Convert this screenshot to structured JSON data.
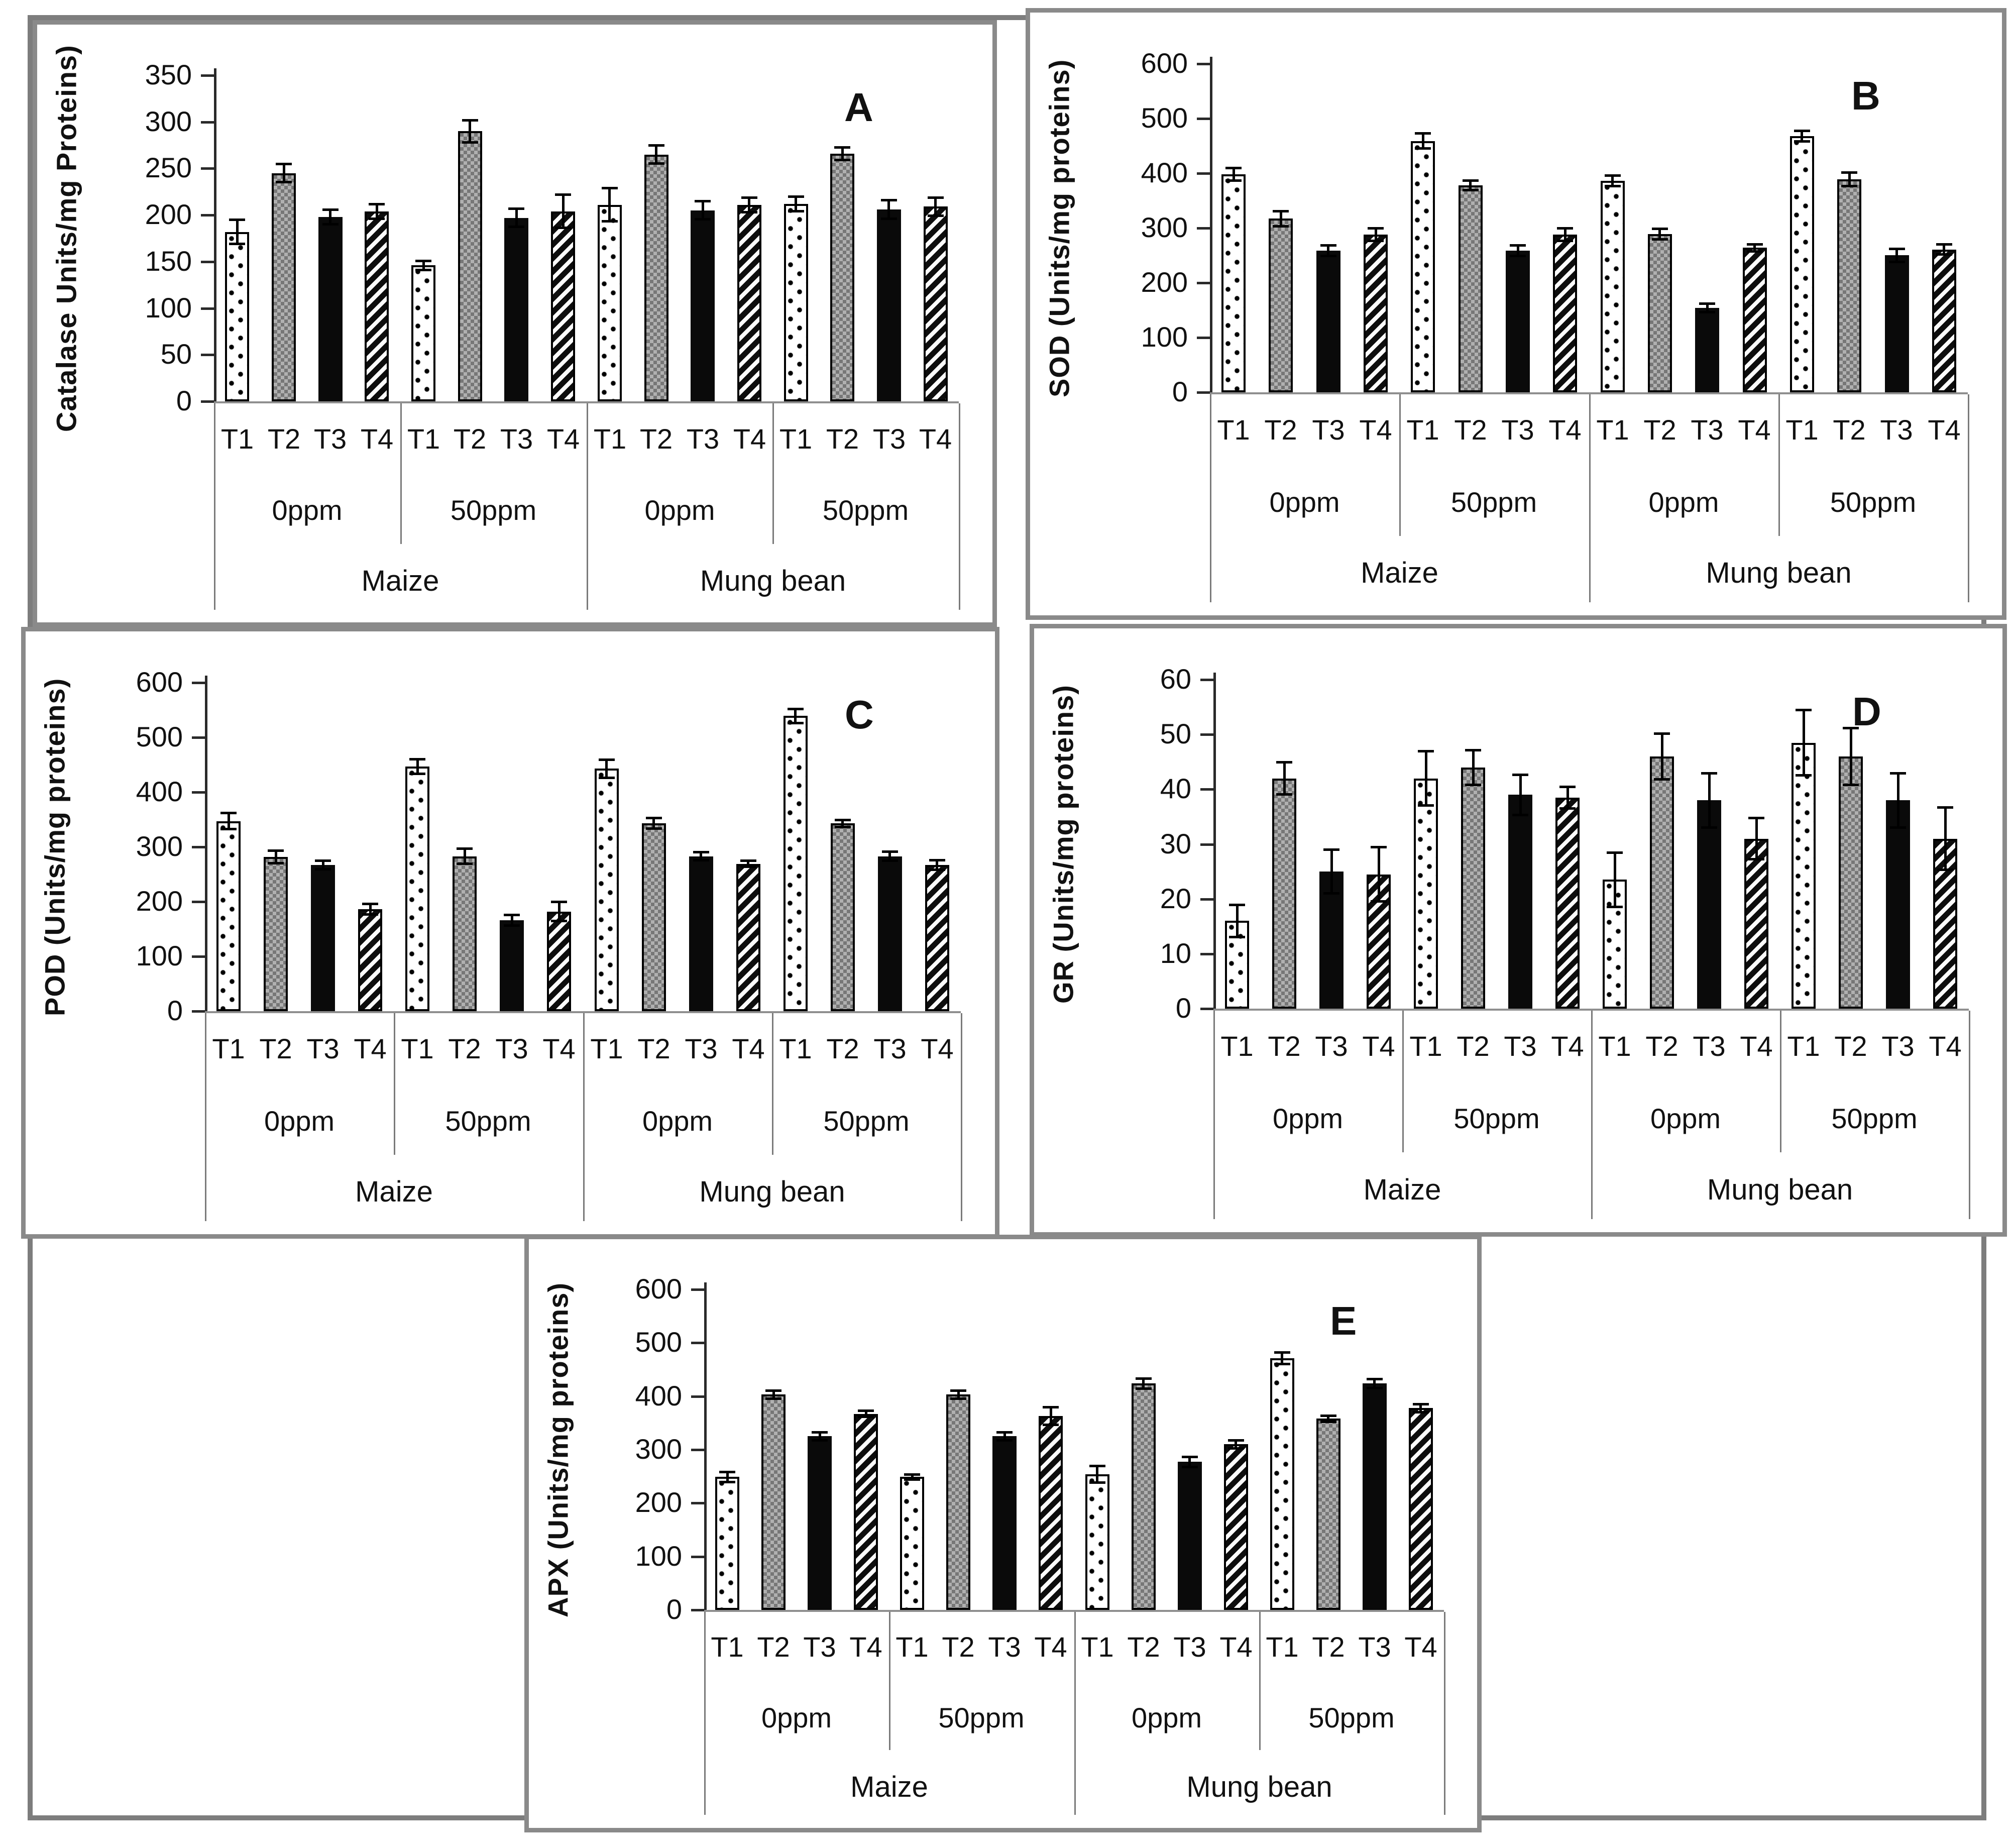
{
  "figure": {
    "treatments": [
      "T1",
      "T2",
      "T3",
      "T4"
    ],
    "ppm_labels": [
      "0ppm",
      "50ppm"
    ],
    "species_labels": [
      "Maize",
      "Mung bean"
    ],
    "bar_patterns": {
      "T1": "dotted-white",
      "T2": "checkered-gray",
      "T3": "solid-black",
      "T4": "diagonal-stripes"
    },
    "colors": {
      "panel_border": "#8a8a8a",
      "outer_frame": "#7d7d7d",
      "axis": "#2a2a2a",
      "baseline": "#8f8f8f",
      "bar_gray": "#949494",
      "black": "#0a0a0a"
    }
  },
  "chart_data": [
    {
      "type": "bar",
      "panel": "A",
      "panel_letter": "A",
      "ylabel": "Catalase Units/mg Proteins)",
      "ylim": [
        0,
        350
      ],
      "ytick_step": 50,
      "yticks": [
        0,
        50,
        100,
        150,
        200,
        250,
        300,
        350
      ],
      "categories_note": "species > ppm > treatment",
      "groups": [
        {
          "species": "Maize",
          "ppm": "0ppm",
          "treatments": [
            "T1",
            "T2",
            "T3",
            "T4"
          ],
          "values": [
            182,
            245,
            198,
            204
          ],
          "errors": [
            13,
            10,
            8,
            8
          ]
        },
        {
          "species": "Maize",
          "ppm": "50ppm",
          "treatments": [
            "T1",
            "T2",
            "T3",
            "T4"
          ],
          "values": [
            146,
            290,
            197,
            204
          ],
          "errors": [
            5,
            12,
            10,
            18
          ]
        },
        {
          "species": "Mung bean",
          "ppm": "0ppm",
          "treatments": [
            "T1",
            "T2",
            "T3",
            "T4"
          ],
          "values": [
            211,
            265,
            205,
            211
          ],
          "errors": [
            18,
            10,
            10,
            8
          ]
        },
        {
          "species": "Mung bean",
          "ppm": "50ppm",
          "treatments": [
            "T1",
            "T2",
            "T3",
            "T4"
          ],
          "values": [
            212,
            266,
            206,
            209
          ],
          "errors": [
            8,
            7,
            10,
            10
          ]
        }
      ]
    },
    {
      "type": "bar",
      "panel": "B",
      "panel_letter": "B",
      "ylabel": "SOD (Units/mg proteins)",
      "ylim": [
        0,
        600
      ],
      "ytick_step": 100,
      "yticks": [
        0,
        100,
        200,
        300,
        400,
        500,
        600
      ],
      "groups": [
        {
          "species": "Maize",
          "ppm": "0ppm",
          "treatments": [
            "T1",
            "T2",
            "T3",
            "T4"
          ],
          "values": [
            398,
            317,
            259,
            288
          ],
          "errors": [
            12,
            14,
            10,
            12
          ]
        },
        {
          "species": "Maize",
          "ppm": "50ppm",
          "treatments": [
            "T1",
            "T2",
            "T3",
            "T4"
          ],
          "values": [
            459,
            378,
            259,
            288
          ],
          "errors": [
            14,
            9,
            10,
            12
          ]
        },
        {
          "species": "Mung bean",
          "ppm": "0ppm",
          "treatments": [
            "T1",
            "T2",
            "T3",
            "T4"
          ],
          "values": [
            386,
            289,
            154,
            264
          ],
          "errors": [
            10,
            10,
            8,
            7
          ]
        },
        {
          "species": "Mung bean",
          "ppm": "50ppm",
          "treatments": [
            "T1",
            "T2",
            "T3",
            "T4"
          ],
          "values": [
            468,
            389,
            250,
            261
          ],
          "errors": [
            10,
            13,
            12,
            10
          ]
        }
      ]
    },
    {
      "type": "bar",
      "panel": "C",
      "panel_letter": "C",
      "ylabel": "POD (Units/mg proteins)",
      "ylim": [
        0,
        600
      ],
      "ytick_step": 100,
      "yticks": [
        0,
        100,
        200,
        300,
        400,
        500,
        600
      ],
      "groups": [
        {
          "species": "Maize",
          "ppm": "0ppm",
          "treatments": [
            "T1",
            "T2",
            "T3",
            "T4"
          ],
          "values": [
            347,
            282,
            267,
            186
          ],
          "errors": [
            15,
            12,
            8,
            10
          ]
        },
        {
          "species": "Maize",
          "ppm": "50ppm",
          "treatments": [
            "T1",
            "T2",
            "T3",
            "T4"
          ],
          "values": [
            447,
            283,
            166,
            182
          ],
          "errors": [
            14,
            14,
            10,
            18
          ]
        },
        {
          "species": "Mung bean",
          "ppm": "0ppm",
          "treatments": [
            "T1",
            "T2",
            "T3",
            "T4"
          ],
          "values": [
            443,
            343,
            283,
            269
          ],
          "errors": [
            17,
            10,
            8,
            6
          ]
        },
        {
          "species": "Mung bean",
          "ppm": "50ppm",
          "treatments": [
            "T1",
            "T2",
            "T3",
            "T4"
          ],
          "values": [
            539,
            343,
            283,
            267
          ],
          "errors": [
            13,
            7,
            9,
            9
          ]
        }
      ]
    },
    {
      "type": "bar",
      "panel": "D",
      "panel_letter": "D",
      "ylabel": "GR (Units/mg proteins)",
      "ylim": [
        0,
        60
      ],
      "ytick_step": 10,
      "yticks": [
        0,
        10,
        20,
        30,
        40,
        50,
        60
      ],
      "groups": [
        {
          "species": "Maize",
          "ppm": "0ppm",
          "treatments": [
            "T1",
            "T2",
            "T3",
            "T4"
          ],
          "values": [
            16,
            42,
            25,
            24.5
          ],
          "errors": [
            3,
            3,
            4,
            5
          ]
        },
        {
          "species": "Maize",
          "ppm": "50ppm",
          "treatments": [
            "T1",
            "T2",
            "T3",
            "T4"
          ],
          "values": [
            42,
            44,
            39,
            38.5
          ],
          "errors": [
            5,
            3.2,
            3.7,
            2
          ]
        },
        {
          "species": "Mung bean",
          "ppm": "0ppm",
          "treatments": [
            "T1",
            "T2",
            "T3",
            "T4"
          ],
          "values": [
            23.5,
            46,
            38,
            31
          ],
          "errors": [
            5,
            4.2,
            5,
            3.8
          ]
        },
        {
          "species": "Mung bean",
          "ppm": "50ppm",
          "treatments": [
            "T1",
            "T2",
            "T3",
            "T4"
          ],
          "values": [
            48.5,
            46,
            38,
            31
          ],
          "errors": [
            6,
            5.2,
            5,
            5.7
          ]
        }
      ]
    },
    {
      "type": "bar",
      "panel": "E",
      "panel_letter": "E",
      "ylabel": "APX (Units/mg proteins)",
      "ylim": [
        0,
        600
      ],
      "ytick_step": 100,
      "yticks": [
        0,
        100,
        200,
        300,
        400,
        500,
        600
      ],
      "groups": [
        {
          "species": "Maize",
          "ppm": "0ppm",
          "treatments": [
            "T1",
            "T2",
            "T3",
            "T4"
          ],
          "values": [
            249,
            403,
            325,
            367
          ],
          "errors": [
            10,
            8,
            8,
            6
          ]
        },
        {
          "species": "Maize",
          "ppm": "50ppm",
          "treatments": [
            "T1",
            "T2",
            "T3",
            "T4"
          ],
          "values": [
            249,
            403,
            325,
            363
          ],
          "errors": [
            5,
            8,
            8,
            17
          ]
        },
        {
          "species": "Mung bean",
          "ppm": "0ppm",
          "treatments": [
            "T1",
            "T2",
            "T3",
            "T4"
          ],
          "values": [
            254,
            424,
            277,
            310
          ],
          "errors": [
            16,
            10,
            10,
            8
          ]
        },
        {
          "species": "Mung bean",
          "ppm": "50ppm",
          "treatments": [
            "T1",
            "T2",
            "T3",
            "T4"
          ],
          "values": [
            471,
            358,
            424,
            378
          ],
          "errors": [
            11,
            6,
            9,
            8
          ]
        }
      ]
    }
  ]
}
